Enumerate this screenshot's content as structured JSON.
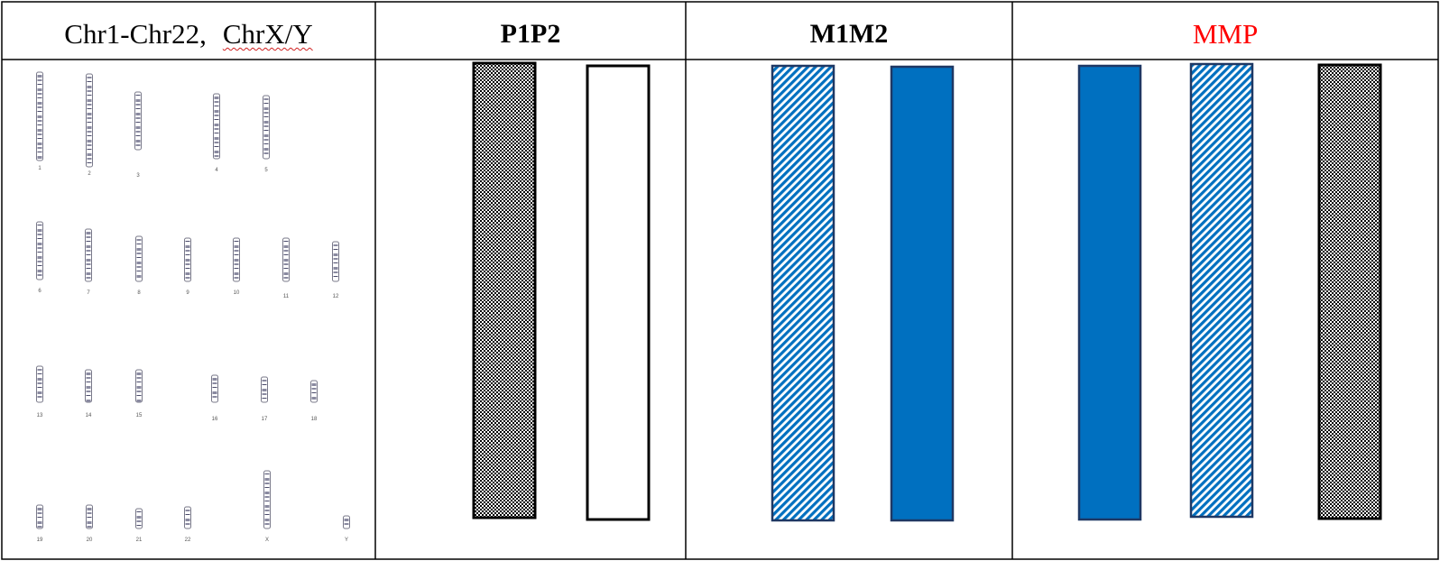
{
  "header": {
    "col1_prefix": "Chr1-Chr22,",
    "col1_marked": "ChrX/Y",
    "col2": "P1P2",
    "col3": "M1M2",
    "col4": "MMP"
  },
  "colors": {
    "blue": "#0070C0",
    "navy": "#1F3864",
    "mmp_header": "#FF0000",
    "border": "#000000"
  },
  "karyotype_labels": [
    "1",
    "2",
    "3",
    "4",
    "5",
    "6",
    "7",
    "8",
    "9",
    "10",
    "11",
    "12",
    "13",
    "14",
    "15",
    "16",
    "17",
    "18",
    "19",
    "20",
    "21",
    "22",
    "X",
    "Y"
  ],
  "columns": {
    "P1P2": [
      {
        "fill": "dotted"
      },
      {
        "fill": "blank"
      }
    ],
    "M1M2": [
      {
        "fill": "hatched"
      },
      {
        "fill": "solid-blue"
      }
    ],
    "MMP": [
      {
        "fill": "solid-blue"
      },
      {
        "fill": "hatched"
      },
      {
        "fill": "dotted"
      }
    ]
  }
}
